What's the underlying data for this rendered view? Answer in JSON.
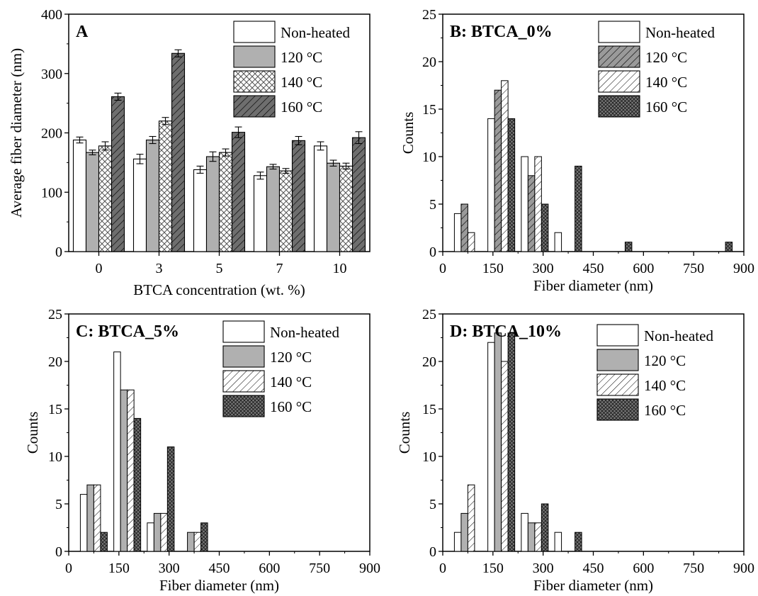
{
  "figure": {
    "colors": {
      "series": [
        "#ffffff",
        "#b0b0b0",
        "#ffffff",
        "#6e6e6e"
      ],
      "stroke": "#000000"
    },
    "patterns": [
      "none",
      "none",
      "cross-hatch",
      "diagonal"
    ]
  },
  "chart_data": [
    {
      "id": "A",
      "type": "bar",
      "title": "A",
      "xlabel": "BTCA concentration (wt. %)",
      "ylabel": "Average fiber diameter (nm)",
      "categories": [
        "0",
        "3",
        "5",
        "7",
        "10"
      ],
      "ylim": [
        0,
        400
      ],
      "yticks": [
        0,
        100,
        200,
        300,
        400
      ],
      "grid": false,
      "legend_position": "top-right",
      "series": [
        {
          "name": "Non-heated",
          "values": [
            188,
            156,
            138,
            128,
            178
          ],
          "errors": [
            5,
            8,
            6,
            6,
            7
          ],
          "pattern": "none",
          "fill": "#ffffff"
        },
        {
          "name": "120 °C",
          "values": [
            167,
            188,
            160,
            143,
            149
          ],
          "errors": [
            4,
            6,
            8,
            4,
            5
          ],
          "pattern": "none",
          "fill": "#b0b0b0"
        },
        {
          "name": "140 °C",
          "values": [
            178,
            220,
            167,
            136,
            144
          ],
          "errors": [
            7,
            6,
            6,
            4,
            5
          ],
          "pattern": "crosshatch",
          "fill": "#ffffff"
        },
        {
          "name": "160 °C",
          "values": [
            261,
            334,
            201,
            187,
            192
          ],
          "errors": [
            6,
            6,
            9,
            7,
            10
          ],
          "pattern": "diag",
          "fill": "#6e6e6e"
        }
      ]
    },
    {
      "id": "B",
      "type": "bar",
      "title": "B: BTCA_0%",
      "xlabel": "Fiber diameter (nm)",
      "ylabel": "Counts",
      "xlim": [
        0,
        900
      ],
      "xticks": [
        0,
        150,
        300,
        450,
        600,
        750,
        900
      ],
      "ylim": [
        0,
        25
      ],
      "yticks": [
        0,
        5,
        10,
        15,
        20,
        25
      ],
      "grid": false,
      "legend_position": "top-right",
      "bin_centers": [
        75,
        175,
        275,
        375,
        425,
        525,
        825
      ],
      "series": [
        {
          "name": "Non-heated",
          "pattern": "none",
          "fill": "#ffffff",
          "x": [
            75,
            175,
            275,
            375
          ],
          "values": [
            4,
            14,
            10,
            2
          ]
        },
        {
          "name": "120 °C",
          "pattern": "diag",
          "fill": "#9a9a9a",
          "x": [
            75,
            175,
            275
          ],
          "values": [
            5,
            17,
            8
          ]
        },
        {
          "name": "140 °C",
          "pattern": "diag",
          "fill": "#ffffff",
          "x": [
            75,
            175,
            275
          ],
          "values": [
            2,
            18,
            10
          ]
        },
        {
          "name": "160 °C",
          "pattern": "crosshatch",
          "fill": "#7a7a7a",
          "x": [
            175,
            275,
            375,
            525,
            825
          ],
          "values": [
            14,
            5,
            9,
            1,
            1
          ]
        }
      ]
    },
    {
      "id": "C",
      "type": "bar",
      "title": "C: BTCA_5%",
      "xlabel": "Fiber diameter (nm)",
      "ylabel": "Counts",
      "xlim": [
        0,
        900
      ],
      "xticks": [
        0,
        150,
        300,
        450,
        600,
        750,
        900
      ],
      "ylim": [
        0,
        25
      ],
      "yticks": [
        0,
        5,
        10,
        15,
        20,
        25
      ],
      "grid": false,
      "legend_position": "top-right",
      "series": [
        {
          "name": "Non-heated",
          "pattern": "none",
          "fill": "#ffffff",
          "x": [
            75,
            175,
            275
          ],
          "values": [
            6,
            21,
            3
          ]
        },
        {
          "name": "120 °C",
          "pattern": "none",
          "fill": "#b0b0b0",
          "x": [
            75,
            175,
            275,
            375
          ],
          "values": [
            7,
            17,
            4,
            2
          ]
        },
        {
          "name": "140 °C",
          "pattern": "diag",
          "fill": "#ffffff",
          "x": [
            75,
            175,
            275,
            375
          ],
          "values": [
            7,
            17,
            4,
            2
          ]
        },
        {
          "name": "160 °C",
          "pattern": "crosshatch",
          "fill": "#7a7a7a",
          "x": [
            75,
            175,
            275,
            375
          ],
          "values": [
            2,
            14,
            11,
            3
          ]
        }
      ]
    },
    {
      "id": "D",
      "type": "bar",
      "title": "D: BTCA_10%",
      "xlabel": "Fiber diameter (nm)",
      "ylabel": "Counts",
      "xlim": [
        0,
        900
      ],
      "xticks": [
        0,
        150,
        300,
        450,
        600,
        750,
        900
      ],
      "ylim": [
        0,
        25
      ],
      "yticks": [
        0,
        5,
        10,
        15,
        20,
        25
      ],
      "grid": false,
      "legend_position": "top-right",
      "series": [
        {
          "name": "Non-heated",
          "pattern": "none",
          "fill": "#ffffff",
          "x": [
            75,
            175,
            275,
            375
          ],
          "values": [
            2,
            22,
            4,
            2
          ]
        },
        {
          "name": "120 °C",
          "pattern": "none",
          "fill": "#b0b0b0",
          "x": [
            75,
            175,
            275
          ],
          "values": [
            4,
            23,
            3
          ]
        },
        {
          "name": "140 °C",
          "pattern": "diag",
          "fill": "#ffffff",
          "x": [
            75,
            175,
            275
          ],
          "values": [
            7,
            20,
            3
          ]
        },
        {
          "name": "160 °C",
          "pattern": "crosshatch",
          "fill": "#7a7a7a",
          "x": [
            175,
            275,
            375
          ],
          "values": [
            23,
            5,
            2
          ]
        }
      ]
    }
  ]
}
